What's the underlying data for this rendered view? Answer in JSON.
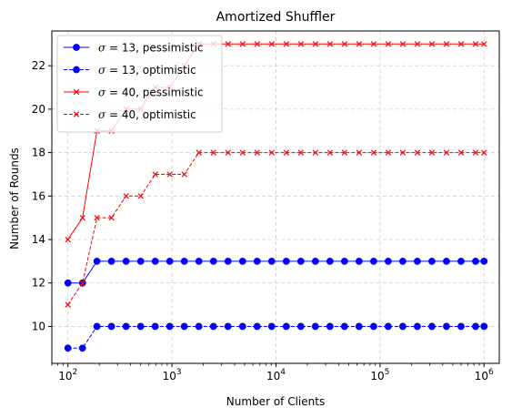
{
  "chart_data": {
    "type": "line",
    "title": "Amortized Shuffler",
    "xlabel": "Number of Clients",
    "ylabel": "Number of Rounds",
    "xscale": "log",
    "xlim": [
      70,
      1400000
    ],
    "ylim": [
      8.3,
      23.6
    ],
    "grid": true,
    "legend_position": "upper-left",
    "x_ticks": [
      {
        "value": 100,
        "base": "10",
        "exp": "2"
      },
      {
        "value": 1000,
        "base": "10",
        "exp": "3"
      },
      {
        "value": 10000,
        "base": "10",
        "exp": "4"
      },
      {
        "value": 100000,
        "base": "10",
        "exp": "5"
      },
      {
        "value": 1000000,
        "base": "10",
        "exp": "6"
      }
    ],
    "y_ticks": [
      10,
      12,
      14,
      16,
      18,
      20,
      22
    ],
    "x": [
      100,
      138,
      190,
      262,
      362,
      500,
      690,
      952,
      1314,
      1814,
      2504,
      3456,
      4771,
      6586,
      9091,
      12549,
      17323,
      23912,
      33008,
      45563,
      62893,
      86818,
      119840,
      165424,
      228347,
      315206,
      435107,
      600617,
      829081,
      1000000
    ],
    "series": [
      {
        "name": "σ = 13, pessimistic",
        "greek": "σ",
        "eq": " = 13, pessimistic",
        "color": "#0000ff",
        "linestyle": "solid",
        "marker": "circle",
        "values": [
          12,
          12,
          13,
          13,
          13,
          13,
          13,
          13,
          13,
          13,
          13,
          13,
          13,
          13,
          13,
          13,
          13,
          13,
          13,
          13,
          13,
          13,
          13,
          13,
          13,
          13,
          13,
          13,
          13,
          13
        ]
      },
      {
        "name": "σ = 13, optimistic",
        "greek": "σ",
        "eq": " = 13, optimistic",
        "color": "#0000ff",
        "linestyle": "dashed",
        "marker": "circle",
        "values": [
          9,
          9,
          10,
          10,
          10,
          10,
          10,
          10,
          10,
          10,
          10,
          10,
          10,
          10,
          10,
          10,
          10,
          10,
          10,
          10,
          10,
          10,
          10,
          10,
          10,
          10,
          10,
          10,
          10,
          10
        ]
      },
      {
        "name": "σ = 40, pessimistic",
        "greek": "σ",
        "eq": " = 40, pessimistic",
        "color": "#ff0000",
        "linestyle": "solid",
        "marker": "x",
        "values": [
          14,
          15,
          19,
          19,
          20,
          20,
          21,
          21,
          22,
          23,
          23,
          23,
          23,
          23,
          23,
          23,
          23,
          23,
          23,
          23,
          23,
          23,
          23,
          23,
          23,
          23,
          23,
          23,
          23,
          23
        ]
      },
      {
        "name": "σ = 40, optimistic",
        "greek": "σ",
        "eq": " = 40, optimistic",
        "color": "#ff0000",
        "linestyle": "dashed",
        "marker": "x",
        "values": [
          11,
          12,
          15,
          15,
          16,
          16,
          17,
          17,
          17,
          18,
          18,
          18,
          18,
          18,
          18,
          18,
          18,
          18,
          18,
          18,
          18,
          18,
          18,
          18,
          18,
          18,
          18,
          18,
          18,
          18
        ]
      }
    ]
  }
}
